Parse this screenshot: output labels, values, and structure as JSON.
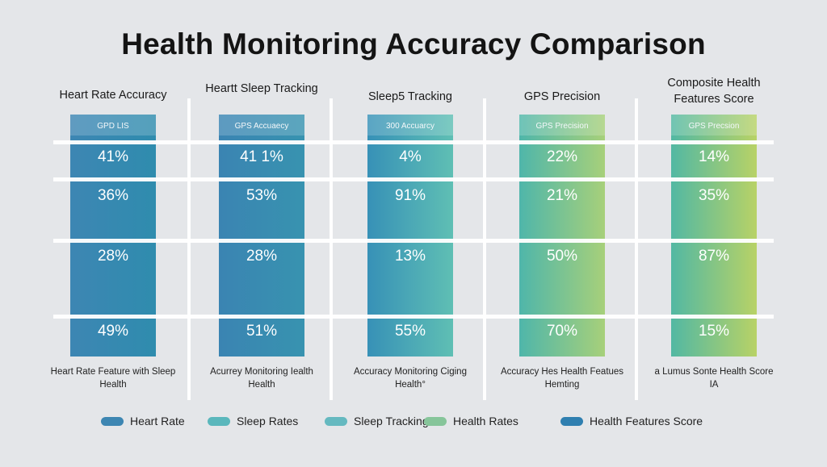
{
  "chart_data": {
    "type": "bar",
    "title": "Health Monitoring Accuracy Comparison",
    "categories": [
      "Heart Rate Accuracy",
      "Heartt Sleep Tracking",
      "Sleep5 Tracking",
      "GPS Precision",
      "Composite Health Features Score"
    ],
    "badges": [
      "GPD LIS",
      "GPS Accuaecy",
      "300 Accuarcy",
      "GPS Precision",
      "GPS Precsion"
    ],
    "footers": [
      "Heart Rate Feature with Sleep Health",
      "Acurrey Monitoring Iealth Health",
      "Accuracy Monitoring Ciging Health°",
      "Accuracy Hes Health Featues Hemting",
      "a Lumus Sonte Health Score IA"
    ],
    "rows": [
      {
        "labels": [
          "41%",
          "41 1%",
          "4%",
          "22%",
          "14%"
        ],
        "values": [
          41,
          41.1,
          4,
          22,
          14
        ]
      },
      {
        "labels": [
          "36%",
          "53%",
          "91%",
          "21%",
          "35%"
        ],
        "values": [
          36,
          53,
          91,
          21,
          35
        ]
      },
      {
        "labels": [
          "28%",
          "28%",
          "13%",
          "50%",
          "87%"
        ],
        "values": [
          28,
          28,
          13,
          50,
          87
        ]
      },
      {
        "labels": [
          "49%",
          "51%",
          "55%",
          "70%",
          "15%"
        ],
        "values": [
          49,
          51,
          55,
          70,
          15
        ]
      }
    ],
    "legend": [
      {
        "label": "Heart Rate",
        "color": "#3d86b2"
      },
      {
        "label": "Sleep Rates",
        "color": "#5ab7bc"
      },
      {
        "label": "Sleep Tracking",
        "color": "#65b9c0"
      },
      {
        "label": "Health Rates",
        "color": "#86c59a"
      },
      {
        "label": "Health Features Score",
        "color": "#2f7fb0"
      }
    ],
    "gradients": [
      [
        "#3d86b3",
        "#2f8cae"
      ],
      [
        "#3a84b2",
        "#3893b0"
      ],
      [
        "#3791b7",
        "#5fbfb4"
      ],
      [
        "#4fb6aa",
        "#a7d07a"
      ],
      [
        "#52b8a3",
        "#b8d266"
      ]
    ],
    "grid": true
  }
}
